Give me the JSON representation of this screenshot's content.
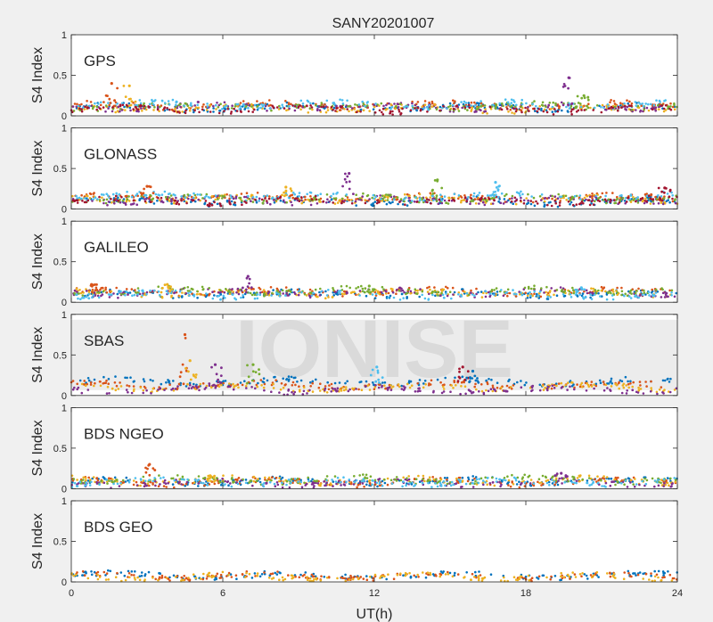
{
  "chart_data": {
    "type": "scatter",
    "title": "SANY20201007",
    "xlabel": "UT(h)",
    "watermark": "IONISE",
    "x_ticks": [
      "0",
      "6",
      "12",
      "18",
      "24"
    ],
    "xlim": [
      0,
      24
    ],
    "colors": [
      "#0072BD",
      "#D95319",
      "#EDB120",
      "#7E2F8E",
      "#77AC30",
      "#4DBEEE",
      "#A2142F"
    ],
    "panels": [
      {
        "name": "GPS",
        "ylabel": "S4 Index",
        "ylim": [
          0,
          1
        ],
        "y_ticks": [
          "0",
          "0.5",
          "1"
        ],
        "series_count": 7,
        "baseline": [
          0.1,
          0.13,
          0.09,
          0.11,
          0.12,
          0.14,
          0.08
        ],
        "spikes": [
          {
            "x": 1.6,
            "y": 0.4
          },
          {
            "x": 2.3,
            "y": 0.37
          },
          {
            "x": 19.7,
            "y": 0.47
          },
          {
            "x": 20.3,
            "y": 0.25
          }
        ]
      },
      {
        "name": "GLONASS",
        "ylabel": "S4 Index",
        "ylim": [
          0,
          1
        ],
        "y_ticks": [
          "0",
          "0.5",
          "1"
        ],
        "series_count": 7,
        "baseline": [
          0.09,
          0.14,
          0.12,
          0.11,
          0.13,
          0.16,
          0.1
        ],
        "spikes": [
          {
            "x": 3.0,
            "y": 0.28
          },
          {
            "x": 8.5,
            "y": 0.27
          },
          {
            "x": 11.0,
            "y": 0.44
          },
          {
            "x": 14.5,
            "y": 0.36
          },
          {
            "x": 16.8,
            "y": 0.33
          },
          {
            "x": 23.5,
            "y": 0.26
          }
        ]
      },
      {
        "name": "GALILEO",
        "ylabel": "S4 Index",
        "ylim": [
          0,
          1
        ],
        "y_ticks": [
          "0",
          "0.5",
          "1"
        ],
        "series_count": 6,
        "baseline": [
          0.1,
          0.13,
          0.11,
          0.12,
          0.14,
          0.09
        ],
        "spikes": [
          {
            "x": 0.8,
            "y": 0.22
          },
          {
            "x": 3.8,
            "y": 0.22
          },
          {
            "x": 7.0,
            "y": 0.32
          },
          {
            "x": 11.8,
            "y": 0.2
          },
          {
            "x": 20.2,
            "y": 0.18
          }
        ]
      },
      {
        "name": "SBAS",
        "ylabel": "S4 Index",
        "ylim": [
          0,
          1
        ],
        "y_ticks": [
          "0",
          "0.5",
          "1"
        ],
        "series_count": 4,
        "baseline": [
          0.17,
          0.13,
          0.1,
          0.07
        ],
        "spikes": [
          {
            "x": 4.5,
            "y": 0.75
          },
          {
            "x": 4.7,
            "y": 0.43
          },
          {
            "x": 5.7,
            "y": 0.38
          },
          {
            "x": 7.2,
            "y": 0.38
          },
          {
            "x": 12.1,
            "y": 0.35
          },
          {
            "x": 15.5,
            "y": 0.35
          },
          {
            "x": 15.9,
            "y": 0.3
          }
        ]
      },
      {
        "name": "BDS NGEO",
        "ylabel": "S4 Index",
        "ylim": [
          0,
          1
        ],
        "y_ticks": [
          "0",
          "0.5",
          "1"
        ],
        "series_count": 6,
        "baseline": [
          0.09,
          0.08,
          0.1,
          0.07,
          0.11,
          0.08
        ],
        "spikes": [
          {
            "x": 3.1,
            "y": 0.3
          },
          {
            "x": 5.5,
            "y": 0.16
          },
          {
            "x": 19.4,
            "y": 0.19
          }
        ]
      },
      {
        "name": "BDS GEO",
        "ylabel": "S4 Index",
        "ylim": [
          0,
          1
        ],
        "y_ticks": [
          "0",
          "0.5",
          "1"
        ],
        "series_count": 3,
        "baseline": [
          0.08,
          0.07,
          0.06
        ],
        "spikes": []
      }
    ]
  }
}
